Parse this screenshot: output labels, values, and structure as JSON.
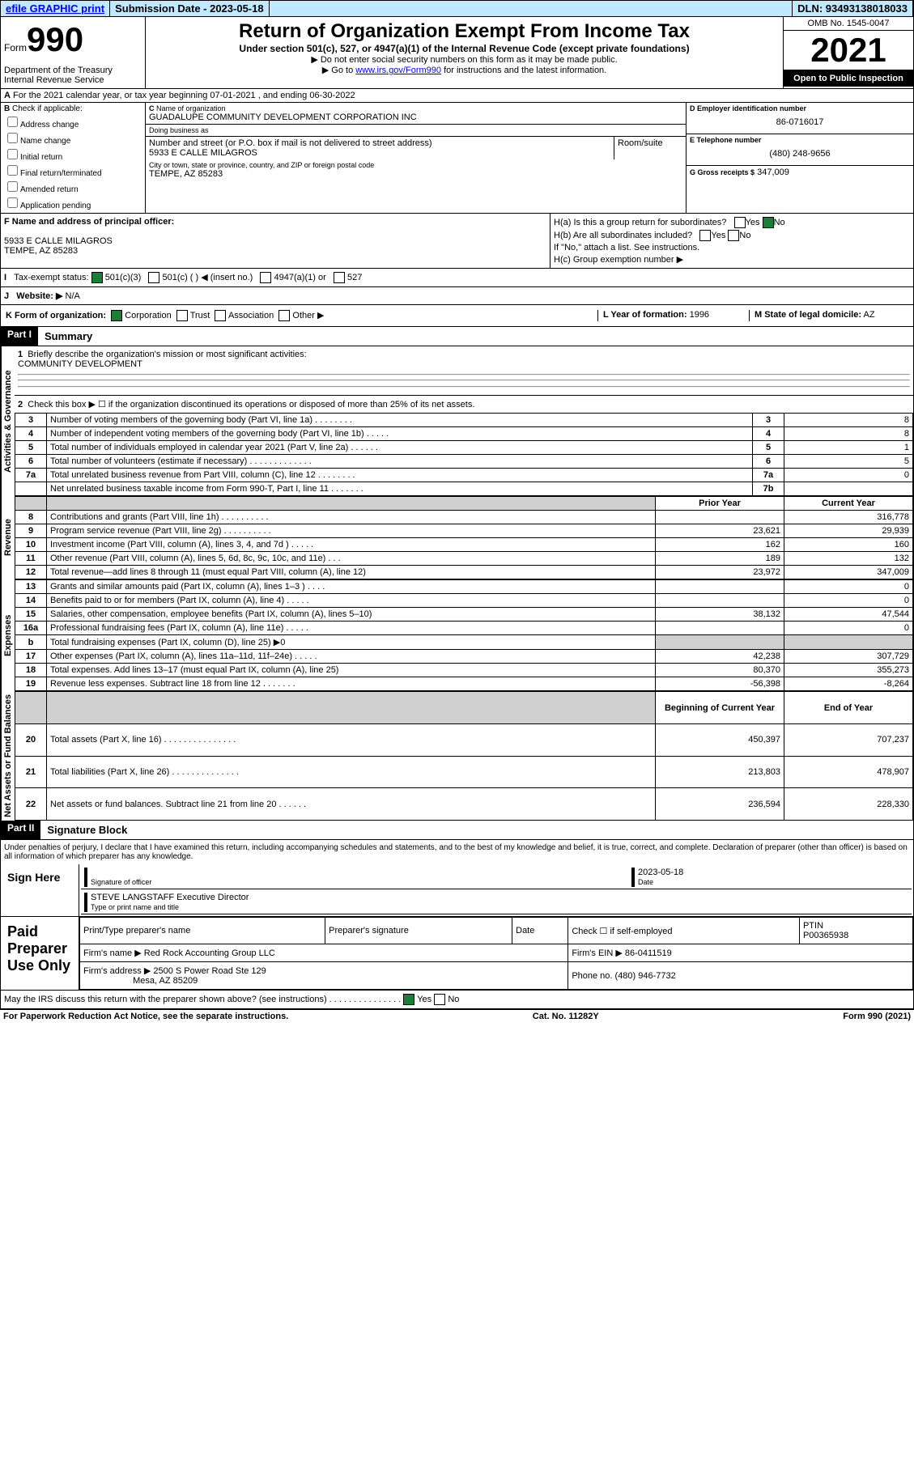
{
  "topbar": {
    "efile": "efile GRAPHIC print",
    "sub": "Submission Date - 2023-05-18",
    "dln": "DLN: 93493138018033"
  },
  "header": {
    "form_label": "Form",
    "form_num": "990",
    "title": "Return of Organization Exempt From Income Tax",
    "sub": "Under section 501(c), 527, or 4947(a)(1) of the Internal Revenue Code (except private foundations)",
    "note1": "▶ Do not enter social security numbers on this form as it may be made public.",
    "note2_pre": "▶ Go to ",
    "note2_link": "www.irs.gov/Form990",
    "note2_post": " for instructions and the latest information.",
    "omb": "OMB No. 1545-0047",
    "year": "2021",
    "inspect": "Open to Public Inspection",
    "dept": "Department of the Treasury Internal Revenue Service"
  },
  "rowA": {
    "text": "For the 2021 calendar year, or tax year beginning 07-01-2021    , and ending 06-30-2022"
  },
  "colB": {
    "label": "Check if applicable:",
    "items": [
      "Address change",
      "Name change",
      "Initial return",
      "Final return/terminated",
      "Amended return",
      "Application pending"
    ]
  },
  "colC": {
    "name_lbl": "Name of organization",
    "name": "GUADALUPE COMMUNITY DEVELOPMENT CORPORATION INC",
    "dba_lbl": "Doing business as",
    "addr_lbl": "Number and street (or P.O. box if mail is not delivered to street address)",
    "addr": "5933 E CALLE MILAGROS",
    "room_lbl": "Room/suite",
    "city_lbl": "City or town, state or province, country, and ZIP or foreign postal code",
    "city": "TEMPE, AZ  85283"
  },
  "colD": {
    "ein_lbl": "D Employer identification number",
    "ein": "86-0716017",
    "tel_lbl": "E Telephone number",
    "tel": "(480) 248-9656",
    "gross_lbl": "G Gross receipts $",
    "gross": "347,009"
  },
  "colF": {
    "lbl": "F Name and address of principal officer:",
    "addr1": "5933 E CALLE MILAGROS",
    "addr2": "TEMPE, AZ  85283"
  },
  "colH": {
    "a": "H(a)  Is this a group return for subordinates?",
    "b": "H(b)  Are all subordinates included?",
    "b_note": "If \"No,\" attach a list. See instructions.",
    "c": "H(c)  Group exemption number ▶",
    "yes": "Yes",
    "no": "No"
  },
  "rowI": {
    "lbl": "Tax-exempt status:",
    "opts": [
      "501(c)(3)",
      "501(c) (  ) ◀ (insert no.)",
      "4947(a)(1) or",
      "527"
    ]
  },
  "rowJ": {
    "lbl": "Website: ▶",
    "val": "N/A"
  },
  "rowK": {
    "lbl": "K Form of organization:",
    "opts": [
      "Corporation",
      "Trust",
      "Association",
      "Other ▶"
    ],
    "year_lbl": "L Year of formation:",
    "year": "1996",
    "state_lbl": "M State of legal domicile:",
    "state": "AZ"
  },
  "part1": {
    "hdr": "Part I",
    "title": "Summary",
    "q1": "Briefly describe the organization's mission or most significant activities:",
    "q1_ans": "COMMUNITY DEVELOPMENT",
    "q2": "Check this box ▶ ☐  if the organization discontinued its operations or disposed of more than 25% of its net assets.",
    "rows_gov": [
      {
        "n": "3",
        "d": "Number of voting members of the governing body (Part VI, line 1a)  .   .   .   .   .   .   .   .",
        "b": "3",
        "v": "8"
      },
      {
        "n": "4",
        "d": "Number of independent voting members of the governing body (Part VI, line 1b)  .   .   .   .   .",
        "b": "4",
        "v": "8"
      },
      {
        "n": "5",
        "d": "Total number of individuals employed in calendar year 2021 (Part V, line 2a)  .   .   .   .   .   .",
        "b": "5",
        "v": "1"
      },
      {
        "n": "6",
        "d": "Total number of volunteers (estimate if necessary)  .   .   .   .   .   .   .   .   .   .   .   .   .",
        "b": "6",
        "v": "5"
      },
      {
        "n": "7a",
        "d": "Total unrelated business revenue from Part VIII, column (C), line 12  .   .   .   .   .   .   .   .",
        "b": "7a",
        "v": "0"
      },
      {
        "n": "",
        "d": "Net unrelated business taxable income from Form 990-T, Part I, line 11  .   .   .   .   .   .   .",
        "b": "7b",
        "v": ""
      }
    ],
    "col_hdr": {
      "p": "Prior Year",
      "c": "Current Year"
    },
    "rows_rev": [
      {
        "n": "8",
        "d": "Contributions and grants (Part VIII, line 1h)  .   .   .   .   .   .   .   .   .   .",
        "p": "",
        "c": "316,778"
      },
      {
        "n": "9",
        "d": "Program service revenue (Part VIII, line 2g)  .   .   .   .   .   .   .   .   .   .",
        "p": "23,621",
        "c": "29,939"
      },
      {
        "n": "10",
        "d": "Investment income (Part VIII, column (A), lines 3, 4, and 7d )  .   .   .   .   .",
        "p": "162",
        "c": "160"
      },
      {
        "n": "11",
        "d": "Other revenue (Part VIII, column (A), lines 5, 6d, 8c, 9c, 10c, and 11e)  .   .   .",
        "p": "189",
        "c": "132"
      },
      {
        "n": "12",
        "d": "Total revenue—add lines 8 through 11 (must equal Part VIII, column (A), line 12)",
        "p": "23,972",
        "c": "347,009"
      }
    ],
    "rows_exp": [
      {
        "n": "13",
        "d": "Grants and similar amounts paid (Part IX, column (A), lines 1–3 )  .   .   .   .",
        "p": "",
        "c": "0"
      },
      {
        "n": "14",
        "d": "Benefits paid to or for members (Part IX, column (A), line 4)  .   .   .   .   .",
        "p": "",
        "c": "0"
      },
      {
        "n": "15",
        "d": "Salaries, other compensation, employee benefits (Part IX, column (A), lines 5–10)",
        "p": "38,132",
        "c": "47,544"
      },
      {
        "n": "16a",
        "d": "Professional fundraising fees (Part IX, column (A), line 11e)  .   .   .   .   .",
        "p": "",
        "c": "0"
      },
      {
        "n": "b",
        "d": "Total fundraising expenses (Part IX, column (D), line 25) ▶0",
        "p": "shade",
        "c": "shade"
      },
      {
        "n": "17",
        "d": "Other expenses (Part IX, column (A), lines 11a–11d, 11f–24e)  .   .   .   .   .",
        "p": "42,238",
        "c": "307,729"
      },
      {
        "n": "18",
        "d": "Total expenses. Add lines 13–17 (must equal Part IX, column (A), line 25)",
        "p": "80,370",
        "c": "355,273"
      },
      {
        "n": "19",
        "d": "Revenue less expenses. Subtract line 18 from line 12  .   .   .   .   .   .   .",
        "p": "-56,398",
        "c": "-8,264"
      }
    ],
    "col_hdr2": {
      "p": "Beginning of Current Year",
      "c": "End of Year"
    },
    "rows_net": [
      {
        "n": "20",
        "d": "Total assets (Part X, line 16)  .   .   .   .   .   .   .   .   .   .   .   .   .   .   .",
        "p": "450,397",
        "c": "707,237"
      },
      {
        "n": "21",
        "d": "Total liabilities (Part X, line 26)  .   .   .   .   .   .   .   .   .   .   .   .   .   .",
        "p": "213,803",
        "c": "478,907"
      },
      {
        "n": "22",
        "d": "Net assets or fund balances. Subtract line 21 from line 20  .   .   .   .   .   .",
        "p": "236,594",
        "c": "228,330"
      }
    ]
  },
  "part2": {
    "hdr": "Part II",
    "title": "Signature Block",
    "decl": "Under penalties of perjury, I declare that I have examined this return, including accompanying schedules and statements, and to the best of my knowledge and belief, it is true, correct, and complete. Declaration of preparer (other than officer) is based on all information of which preparer has any knowledge.",
    "sign_here": "Sign Here",
    "sig_off": "Signature of officer",
    "sig_date": "Date",
    "sig_date_val": "2023-05-18",
    "officer": "STEVE LANGSTAFF Executive Director",
    "officer_lbl": "Type or print name and title",
    "paid": "Paid Preparer Use Only",
    "prep_name_lbl": "Print/Type preparer's name",
    "prep_sig_lbl": "Preparer's signature",
    "date_lbl": "Date",
    "check_lbl": "Check ☐ if self-employed",
    "ptin_lbl": "PTIN",
    "ptin": "P00365938",
    "firm_name_lbl": "Firm's name    ▶",
    "firm_name": "Red Rock Accounting Group LLC",
    "firm_ein_lbl": "Firm's EIN ▶",
    "firm_ein": "86-0411519",
    "firm_addr_lbl": "Firm's address ▶",
    "firm_addr": "2500 S Power Road Ste 129",
    "firm_city": "Mesa, AZ  85209",
    "phone_lbl": "Phone no.",
    "phone": "(480) 946-7732",
    "discuss": "May the IRS discuss this return with the preparer shown above? (see instructions)  .   .   .   .   .   .   .   .   .   .   .   .   .   .   ."
  },
  "footer": {
    "l": "For Paperwork Reduction Act Notice, see the separate instructions.",
    "c": "Cat. No. 11282Y",
    "r": "Form 990 (2021)"
  },
  "labels": {
    "gov": "Activities & Governance",
    "rev": "Revenue",
    "exp": "Expenses",
    "net": "Net Assets or Fund Balances"
  }
}
